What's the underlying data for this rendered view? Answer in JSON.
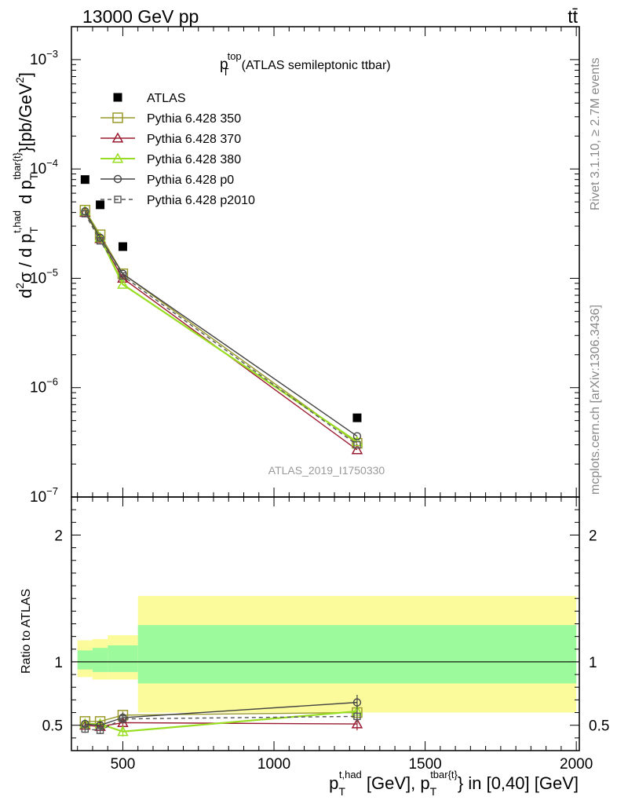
{
  "header": {
    "energy_label": "13000 GeV pp",
    "process_label": "tt̄"
  },
  "side_text": {
    "rivet": "Rivet 3.1.10, ≥ 2.7M events",
    "mcplots": "mcplots.cern.ch [arXiv:1306.3436]"
  },
  "main_title": {
    "main": "p",
    "sup": "top",
    "sub": "T",
    "rest": "(ATLAS semileptonic ttbar)"
  },
  "watermark": "ATLAS_2019_I1750330",
  "chart_data": [
    {
      "type": "scatter",
      "panel": "main",
      "yscale": "log",
      "xlim": [
        330,
        2010
      ],
      "ylim": [
        1e-07,
        0.002
      ],
      "ylabel": "d²σ / d p_T^{t,had} d p_T^{tbar{t}} [pb/GeV²]",
      "y_ticks": [
        {
          "value": 0.001,
          "mantissa": "10",
          "exp": "−3"
        },
        {
          "value": 0.0001,
          "mantissa": "10",
          "exp": "−4"
        },
        {
          "value": 1e-05,
          "mantissa": "10",
          "exp": "−5"
        },
        {
          "value": 1e-06,
          "mantissa": "10",
          "exp": "−6"
        },
        {
          "value": 1e-07,
          "mantissa": "10",
          "exp": "−7"
        }
      ],
      "legend_position": "top-left",
      "series": [
        {
          "name": "ATLAS",
          "marker": "filled-square",
          "color": "#000000",
          "line": "none",
          "x": [
            375,
            425,
            500,
            1275
          ],
          "y": [
            8e-05,
            4.7e-05,
            1.95e-05,
            5.3e-07
          ]
        },
        {
          "name": "Pythia 6.428 350",
          "marker": "open-square",
          "color": "#9a9a2a",
          "line": "solid",
          "x": [
            375,
            425,
            500,
            1275
          ],
          "y": [
            4.2e-05,
            2.5e-05,
            1.1e-05,
            3.1e-07
          ]
        },
        {
          "name": "Pythia 6.428 370",
          "marker": "open-triangle",
          "color": "#9b1b30",
          "line": "solid",
          "x": [
            375,
            425,
            500,
            1275
          ],
          "y": [
            4e-05,
            2.3e-05,
            1e-05,
            2.7e-07
          ]
        },
        {
          "name": "Pythia 6.428 380",
          "marker": "open-triangle",
          "color": "#99dd22",
          "line": "solid",
          "x": [
            375,
            425,
            500,
            1275
          ],
          "y": [
            4.1e-05,
            2.35e-05,
            8.8e-06,
            3.2e-07
          ]
        },
        {
          "name": "Pythia 6.428 p0",
          "marker": "open-circle",
          "color": "#444444",
          "line": "solid",
          "x": [
            375,
            425,
            500,
            1275
          ],
          "y": [
            4.1e-05,
            2.35e-05,
            1.1e-05,
            3.6e-07
          ]
        },
        {
          "name": "Pythia 6.428 p2010",
          "marker": "open-square-small",
          "color": "#555555",
          "line": "dashed",
          "x": [
            375,
            425,
            500,
            1275
          ],
          "y": [
            3.9e-05,
            2.2e-05,
            1.05e-05,
            3e-07
          ]
        }
      ]
    },
    {
      "type": "scatter",
      "panel": "ratio",
      "yscale": "linear",
      "xlim": [
        330,
        2010
      ],
      "ylim": [
        0.3,
        2.3
      ],
      "ylabel": "Ratio to ATLAS",
      "xlabel": "p_T^{t,had} [GeV], p_T^{tbar{t}} in [0,40] [GeV]",
      "x_ticks": [
        {
          "value": 500,
          "label": "500"
        },
        {
          "value": 1000,
          "label": "1000"
        },
        {
          "value": 1500,
          "label": "1500"
        },
        {
          "value": 2000,
          "label": "2000"
        }
      ],
      "y_ticks": [
        {
          "value": 0.5,
          "label": "0.5"
        },
        {
          "value": 1,
          "label": "1"
        },
        {
          "value": 2,
          "label": "2"
        }
      ],
      "bands": [
        {
          "x_low": 350,
          "x_high": 400,
          "stat_low": 0.94,
          "stat_high": 1.09,
          "tot_low": 0.88,
          "tot_high": 1.17
        },
        {
          "x_low": 400,
          "x_high": 450,
          "stat_low": 0.92,
          "stat_high": 1.11,
          "tot_low": 0.86,
          "tot_high": 1.18
        },
        {
          "x_low": 450,
          "x_high": 550,
          "stat_low": 0.92,
          "stat_high": 1.13,
          "tot_low": 0.86,
          "tot_high": 1.21
        },
        {
          "x_low": 550,
          "x_high": 2000,
          "stat_low": 0.83,
          "stat_high": 1.29,
          "tot_low": 0.6,
          "tot_high": 1.52
        }
      ],
      "band_colors": {
        "stat": "#9cfa9c",
        "total": "#fbfb9c"
      },
      "series": [
        {
          "name": "Pythia 6.428 350",
          "marker": "open-square",
          "color": "#9a9a2a",
          "line": "solid",
          "x": [
            375,
            425,
            500,
            1275
          ],
          "y": [
            0.53,
            0.53,
            0.58,
            0.6
          ],
          "err": [
            0.02,
            0.02,
            0.03,
            0.03
          ]
        },
        {
          "name": "Pythia 6.428 370",
          "marker": "open-triangle",
          "color": "#9b1b30",
          "line": "solid",
          "x": [
            375,
            425,
            500,
            1275
          ],
          "y": [
            0.5,
            0.49,
            0.52,
            0.51
          ],
          "err": [
            0.02,
            0.02,
            0.03,
            0.05
          ]
        },
        {
          "name": "Pythia 6.428 380",
          "marker": "open-triangle",
          "color": "#99dd22",
          "line": "solid",
          "x": [
            375,
            425,
            500,
            1275
          ],
          "y": [
            0.51,
            0.51,
            0.45,
            0.61
          ],
          "err": [
            0.02,
            0.02,
            0.04,
            0.04
          ]
        },
        {
          "name": "Pythia 6.428 p0",
          "marker": "open-circle",
          "color": "#444444",
          "line": "solid",
          "x": [
            375,
            425,
            500,
            1275
          ],
          "y": [
            0.51,
            0.5,
            0.56,
            0.68
          ],
          "err": [
            0.02,
            0.03,
            0.04,
            0.06
          ]
        },
        {
          "name": "Pythia 6.428 p2010",
          "marker": "open-square-small",
          "color": "#555555",
          "line": "dashed",
          "x": [
            375,
            425,
            500,
            1275
          ],
          "y": [
            0.47,
            0.46,
            0.55,
            0.57
          ],
          "err": [
            0.03,
            0.03,
            0.04,
            0.05
          ]
        }
      ]
    }
  ]
}
